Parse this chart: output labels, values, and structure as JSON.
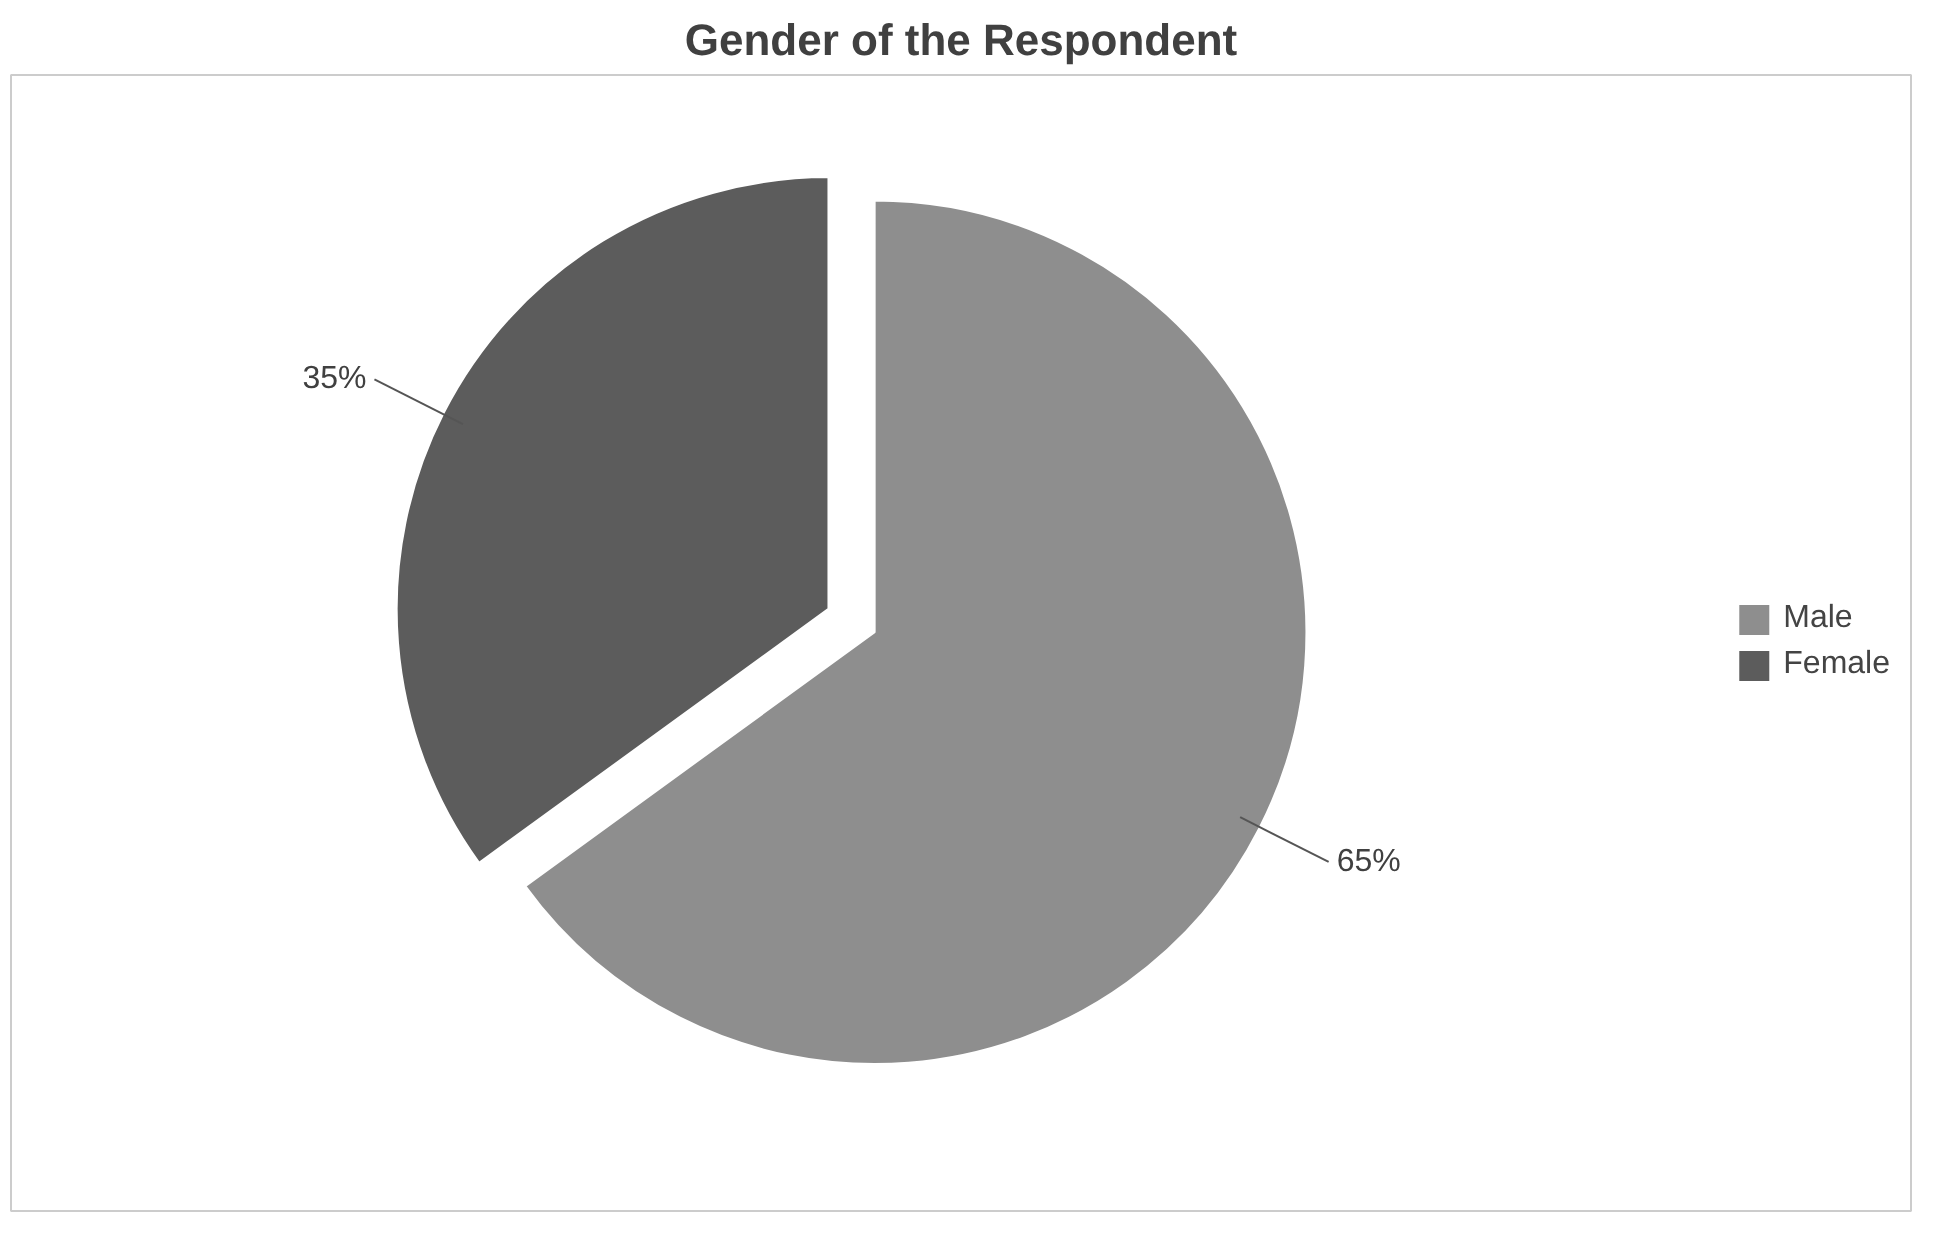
{
  "chart_data": {
    "type": "pie",
    "title": "Gender of the Respondent",
    "categories": [
      "Male",
      "Female"
    ],
    "values": [
      65,
      35
    ],
    "colors": [
      "#8e8e8e",
      "#5c5c5c"
    ],
    "value_labels": [
      "65%",
      "35%"
    ],
    "legend": "right"
  }
}
